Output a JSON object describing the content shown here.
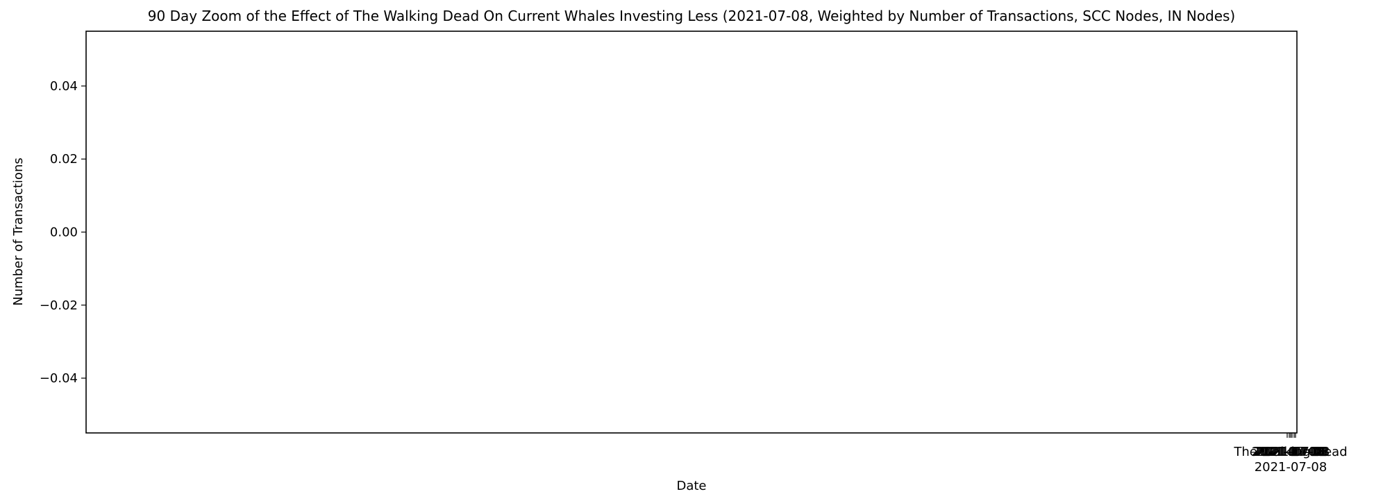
{
  "chart_data": {
    "type": "line",
    "title": "90 Day Zoom of the Effect of The Walking Dead On Current Whales Investing Less (2021-07-08, Weighted by Number of Transactions, SCC Nodes, IN Nodes)",
    "xlabel": "Date",
    "ylabel": "Number of Transactions",
    "ylim": [
      -0.055,
      0.055
    ],
    "yticks": [
      {
        "value": 0.04,
        "label": "0.04"
      },
      {
        "value": 0.02,
        "label": "0.02"
      },
      {
        "value": 0.0,
        "label": "0.00"
      },
      {
        "value": -0.02,
        "label": "−0.02"
      },
      {
        "value": -0.04,
        "label": "−0.04"
      }
    ],
    "event_label": "The Walking Dead",
    "event_date": "2021-07-08",
    "overlapping_xtick_labels": [
      "2021-07-08",
      "2021-07-08",
      "2021-07-08",
      "2021-07-08",
      "2021-07-08"
    ],
    "series": [],
    "grid": false,
    "legend": "none"
  }
}
